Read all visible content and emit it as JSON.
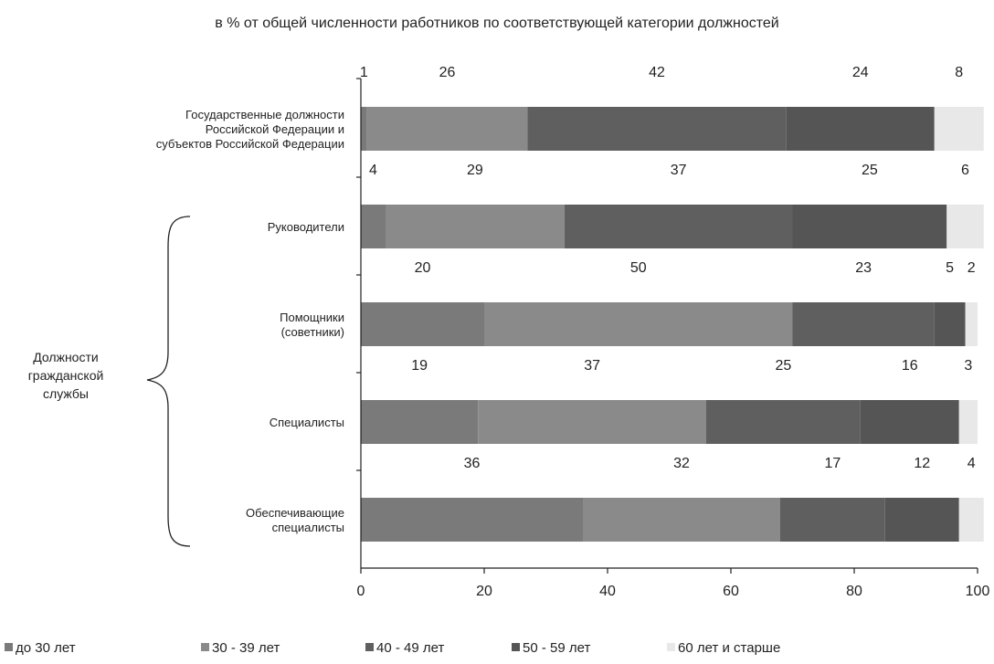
{
  "chart_data": {
    "type": "bar",
    "orientation": "horizontal",
    "stacked": true,
    "title": "в % от общей численности работников по соответствующей категории должностей",
    "group_label": [
      "Должности",
      "гражданской",
      "службы"
    ],
    "categories": [
      [
        "Государственные должности",
        "Российской Федерации  и",
        "субъектов Российской Федерации"
      ],
      [
        "Руководители"
      ],
      [
        "Помощники",
        "(советники)"
      ],
      [
        "Специалисты"
      ],
      [
        "Обеспечивающие",
        "специалисты"
      ]
    ],
    "series": [
      {
        "name": "до 30 лет",
        "color": "#7a7a7a",
        "values": [
          1,
          4,
          20,
          19,
          36
        ]
      },
      {
        "name": "30 - 39 лет",
        "color": "#8a8a8a",
        "values": [
          26,
          29,
          50,
          37,
          32
        ]
      },
      {
        "name": "40 - 49 лет",
        "color": "#5f5f5f",
        "values": [
          42,
          37,
          23,
          25,
          17
        ]
      },
      {
        "name": "50 - 59 лет",
        "color": "#555555",
        "values": [
          24,
          25,
          5,
          16,
          12
        ]
      },
      {
        "name": "60 лет и старше",
        "color": "#e8e8e8",
        "values": [
          8,
          6,
          2,
          3,
          4
        ]
      }
    ],
    "xlim": [
      0,
      100
    ],
    "xticks": [
      "0",
      "20",
      "40",
      "60",
      "80",
      "100"
    ],
    "legend_position": "bottom",
    "grid": false
  }
}
